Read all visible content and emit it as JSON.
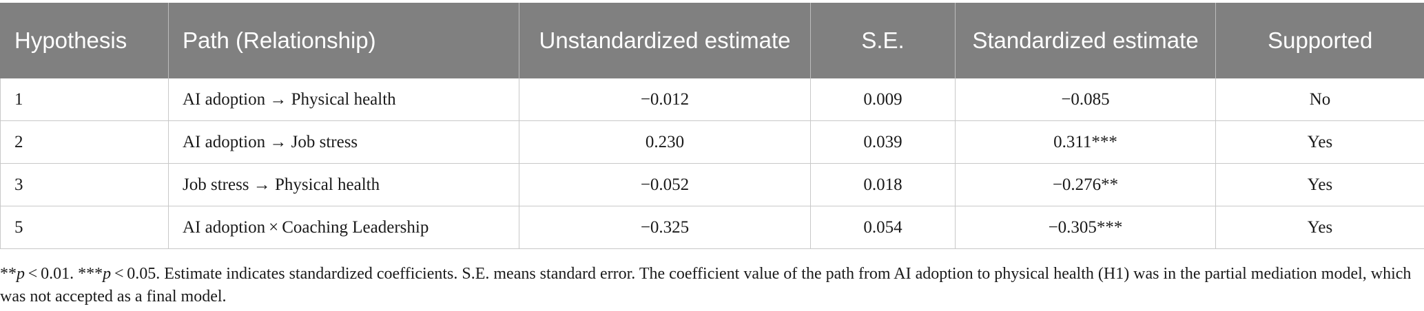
{
  "table": {
    "headers": [
      "Hypothesis",
      "Path (Relationship)",
      "Unstandardized estimate",
      "S.E.",
      "Standardized estimate",
      "Supported"
    ],
    "rows": [
      {
        "hypothesis": "1",
        "path": "AI adoption → Physical health",
        "unstd": "−0.012",
        "se": "0.009",
        "std": "−0.085",
        "supported": "No"
      },
      {
        "hypothesis": "2",
        "path": "AI adoption → Job stress",
        "unstd": "0.230",
        "se": "0.039",
        "std": "0.311***",
        "supported": "Yes"
      },
      {
        "hypothesis": "3",
        "path": "Job stress → Physical health",
        "unstd": "−0.052",
        "se": "0.018",
        "std": "−0.276**",
        "supported": "Yes"
      },
      {
        "hypothesis": "5",
        "path": "AI adoption × Coaching Leadership",
        "unstd": "−0.325",
        "se": "0.054",
        "std": "−0.305***",
        "supported": "Yes"
      }
    ]
  },
  "footnote": {
    "sig1_stars": "**",
    "sig1_p": "p",
    "sig1_rest": " < 0.01. ",
    "sig2_stars": "***",
    "sig2_p": "p",
    "sig2_rest": " < 0.05. Estimate indicates standardized coefficients. S.E. means standard error. The coefficient value of the path from AI adoption to physical health (H1) was in the partial mediation model, which was not accepted as a final model."
  }
}
